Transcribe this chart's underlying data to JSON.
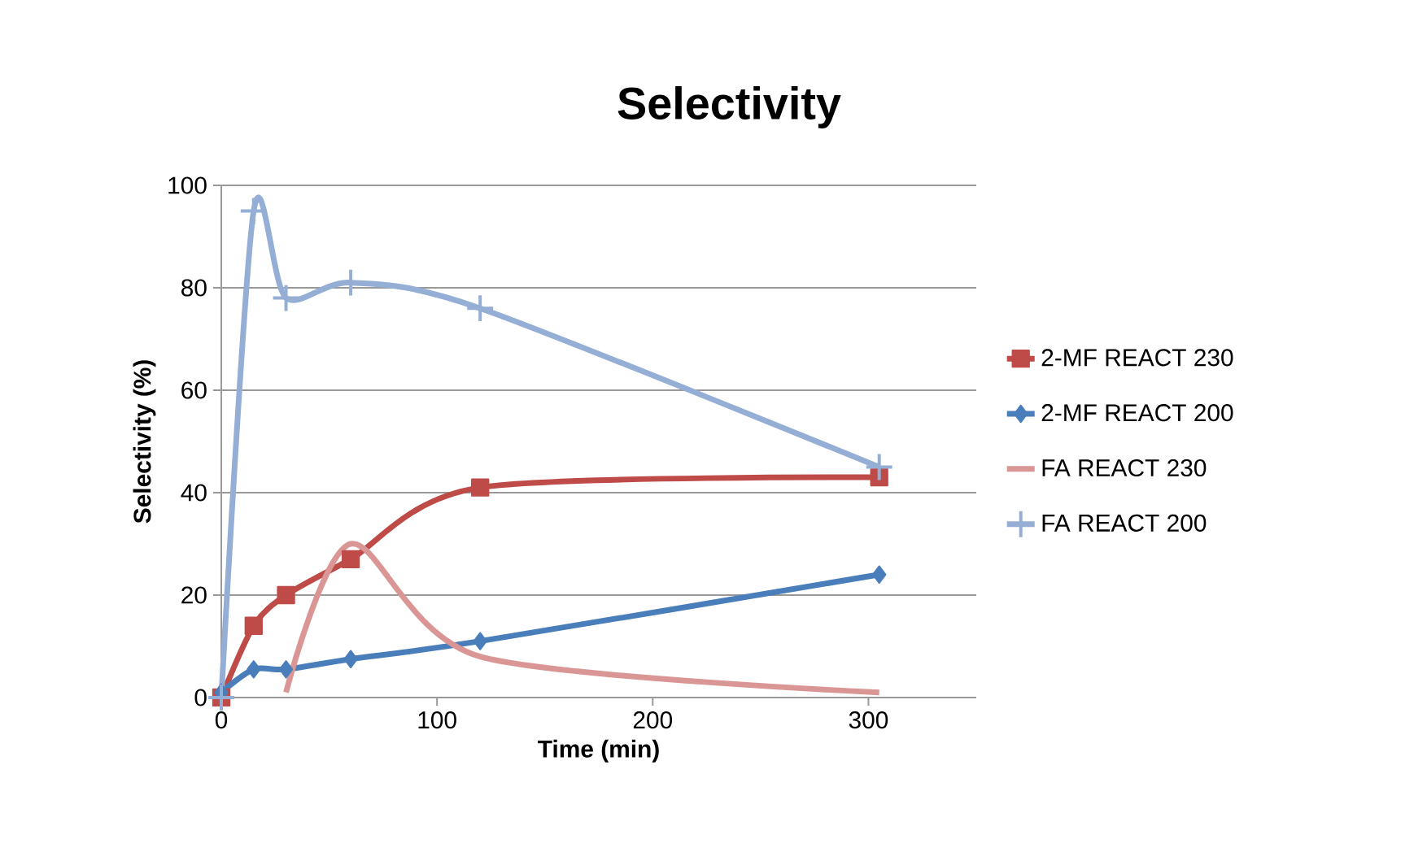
{
  "chart_data": {
    "type": "line",
    "title": "Selectivity",
    "xlabel": "Time (min)",
    "ylabel": "Selectivity (%)",
    "xlim": [
      0,
      350
    ],
    "xticks": [
      0,
      100,
      200,
      300
    ],
    "ylim": [
      0,
      100
    ],
    "yticks": [
      0,
      20,
      40,
      60,
      80,
      100
    ],
    "grid": "y",
    "legend": "right",
    "series": [
      {
        "name": "2-MF REACT 230",
        "color": "#be4b48",
        "marker": "square",
        "x": [
          0,
          15,
          30,
          60,
          120,
          305
        ],
        "values": [
          0,
          14,
          20,
          27,
          41,
          43
        ]
      },
      {
        "name": "2-MF REACT 200",
        "color": "#4a7ebb",
        "marker": "diamond",
        "x": [
          0,
          15,
          30,
          60,
          120,
          305
        ],
        "values": [
          1,
          5.5,
          5.5,
          7.5,
          11,
          24
        ]
      },
      {
        "name": "FA REACT 230",
        "color": "#d99694",
        "marker": "none",
        "x": [
          30,
          60,
          120,
          305
        ],
        "values": [
          1,
          30,
          8,
          1
        ]
      },
      {
        "name": "FA REACT 200",
        "color": "#94aed6",
        "marker": "cross",
        "x": [
          0,
          15,
          30,
          60,
          120,
          305
        ],
        "values": [
          0,
          95,
          78,
          81,
          76,
          45
        ]
      }
    ]
  }
}
